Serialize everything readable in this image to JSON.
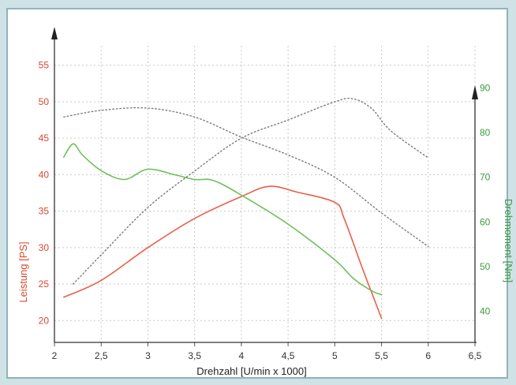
{
  "chart_data": {
    "type": "line",
    "xlabel": "Drehzahl [U/min x 1000]",
    "ylabel": "Leistung [PS]",
    "y2label": "Drehmoment [Nm]",
    "x_ticks": [
      "2",
      "2,5",
      "3",
      "3,5",
      "4",
      "4,5",
      "5",
      "5,5",
      "6",
      "6,5"
    ],
    "y_ticks": [
      "20",
      "25",
      "30",
      "35",
      "40",
      "45",
      "50",
      "55"
    ],
    "y2_ticks": [
      "40",
      "50",
      "60",
      "70",
      "80",
      "90"
    ],
    "xlim": [
      2,
      6.5
    ],
    "ylim": [
      17,
      58
    ],
    "y2lim": [
      33,
      100
    ],
    "grid": true,
    "colors": {
      "leistung": "#e8604a",
      "drehmoment": "#6ec05a",
      "reference": "#7a7a7a",
      "left_axis_text": "#d9482f",
      "right_axis_text": "#3f9a3f"
    },
    "series": [
      {
        "axis": "left",
        "color": "#e8604a",
        "dash": false,
        "points": [
          [
            2.1,
            23.2
          ],
          [
            2.5,
            25.5
          ],
          [
            3,
            30
          ],
          [
            3.5,
            34
          ],
          [
            4,
            37
          ],
          [
            4.3,
            38.4
          ],
          [
            4.6,
            37.6
          ],
          [
            5,
            36.2
          ],
          [
            5.1,
            34
          ],
          [
            5.3,
            27
          ],
          [
            5.5,
            20.3
          ]
        ]
      },
      {
        "axis": "right",
        "color": "#6ec05a",
        "dash": false,
        "points": [
          [
            2.1,
            74.5
          ],
          [
            2.2,
            77.5
          ],
          [
            2.3,
            75
          ],
          [
            2.5,
            71.5
          ],
          [
            2.75,
            69.5
          ],
          [
            3,
            71.8
          ],
          [
            3.3,
            70.5
          ],
          [
            3.5,
            69.5
          ],
          [
            3.7,
            69.3
          ],
          [
            4,
            66
          ],
          [
            4.5,
            59.5
          ],
          [
            5,
            51.5
          ],
          [
            5.2,
            47.3
          ],
          [
            5.4,
            44.5
          ],
          [
            5.5,
            43.7
          ]
        ]
      },
      {
        "axis": "left",
        "color": "#7a7a7a",
        "dash": true,
        "points": [
          [
            2.2,
            25
          ],
          [
            2.5,
            29
          ],
          [
            3,
            35.5
          ],
          [
            3.5,
            40.5
          ],
          [
            4,
            45
          ],
          [
            4.5,
            47.5
          ],
          [
            5,
            50
          ],
          [
            5.2,
            50.4
          ],
          [
            5.4,
            49
          ],
          [
            5.6,
            46
          ],
          [
            6,
            42.3
          ]
        ]
      },
      {
        "axis": "right",
        "color": "#7a7a7a",
        "dash": true,
        "points": [
          [
            2.1,
            83.5
          ],
          [
            2.5,
            85
          ],
          [
            3,
            85.5
          ],
          [
            3.5,
            83.5
          ],
          [
            4,
            79
          ],
          [
            4.5,
            75
          ],
          [
            5,
            70
          ],
          [
            5.5,
            62
          ],
          [
            6,
            54.5
          ]
        ]
      }
    ]
  }
}
